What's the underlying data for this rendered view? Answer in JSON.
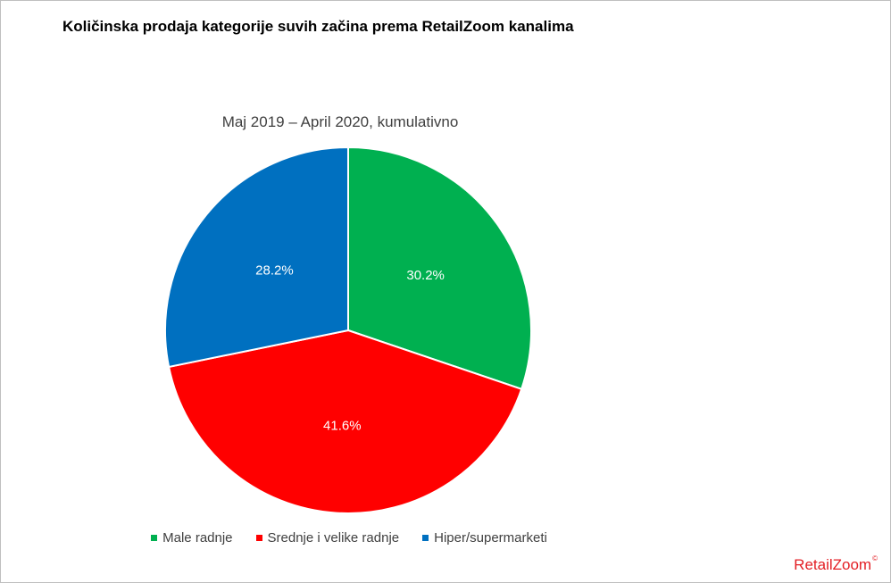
{
  "chart_data": {
    "type": "pie",
    "title": "Količinska prodaja kategorije suvih začina prema RetailZoom kanalima",
    "subtitle": "Maj 2019 – April 2020, kumulativno",
    "categories": [
      "Male radnje",
      "Srednje i velike radnje",
      "Hiper/supermarketi"
    ],
    "values": [
      30.2,
      41.6,
      28.2
    ],
    "data_labels": [
      "30.2%",
      "41.6%",
      "28.2%"
    ],
    "colors": [
      "#00b050",
      "#ff0000",
      "#0070c0"
    ],
    "legend_position": "bottom",
    "start_angle": "12 o'clock, clockwise"
  },
  "brand": {
    "name": "RetailZoom",
    "mark": "©"
  }
}
